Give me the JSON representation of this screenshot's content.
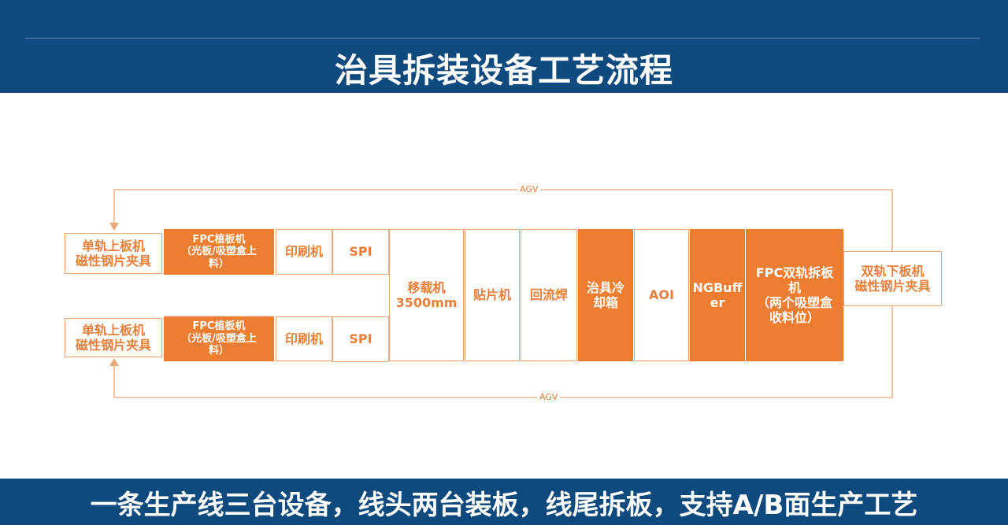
{
  "header": {
    "title": "治具拆装设备工艺流程"
  },
  "diagram": {
    "agv_top": "AGV",
    "agv_bottom": "AGV",
    "top_row": {
      "loader": "单轨上板机\n磁性钢片夹具",
      "fpc_mount": "FPC植板机\n（光板/吸塑盒上\n料）",
      "printer": "印刷机",
      "spi": "SPI"
    },
    "bottom_row": {
      "loader": "单轨上板机\n磁性钢片夹具",
      "fpc_mount": "FPC植板机\n（光板/吸塑盒上\n料）",
      "printer": "印刷机",
      "spi": "SPI"
    },
    "transfer": "移载机\n3500mm",
    "placement": "贴片机",
    "reflow": "回流焊",
    "cooling": "治具冷\n却箱",
    "aoi": "AOI",
    "ngbuffer": "NGBuff\ner",
    "fpc_dual": "FPC双轨拆板\n机\n（两个吸塑盒\n收料位）",
    "unloader": "双轨下板机\n磁性钢片夹具"
  },
  "footer": {
    "text": "一条生产线三台设备，线头两台装板，线尾拆板，支持A/B面生产工艺"
  },
  "colors": {
    "navy": "#0e4a7e",
    "orange": "#ed7d31",
    "border": "#e8a878"
  }
}
